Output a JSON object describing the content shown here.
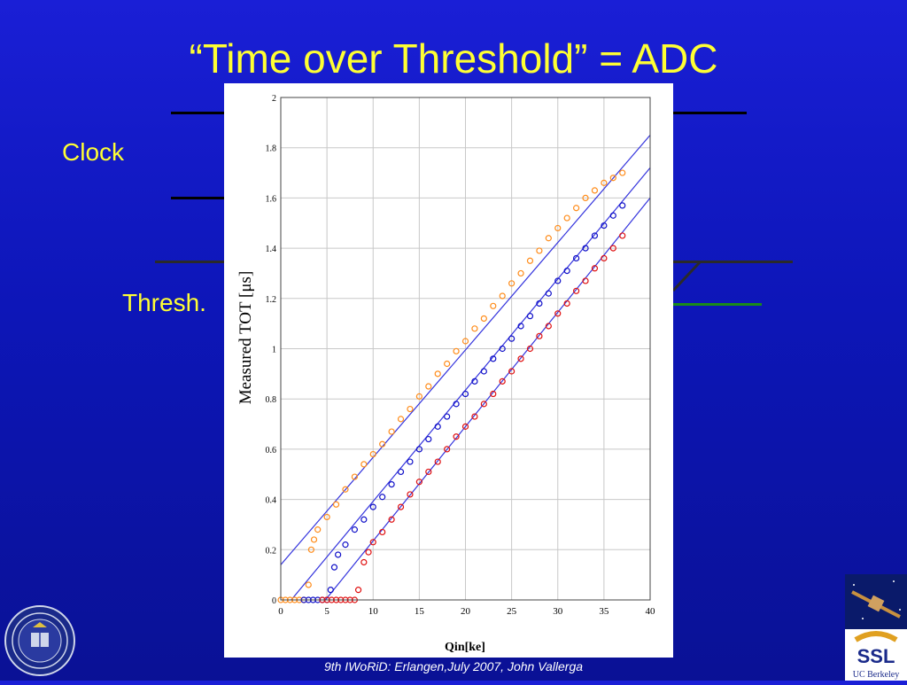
{
  "slide": {
    "title": "“Time over Threshold” = ADC",
    "clock_label": "Clock",
    "thresh_label": "Thresh.",
    "footer": "9th IWoRiD: Erlangen,July 2007, John Vallerga"
  },
  "logos": {
    "left": "uc-seal",
    "right": "ssl-logo",
    "right_text_1": "SSL",
    "right_text_2": "UC Berkeley"
  },
  "colors": {
    "title": "#ffff33",
    "background": "#1018c8",
    "orange_series": "#ff8c1a",
    "blue_series": "#1010c8",
    "red_series": "#e01010",
    "fit_line": "#3333dd",
    "green_line": "#1a8a1a"
  },
  "chart_data": {
    "type": "scatter",
    "xlabel": "Qin[ke]",
    "ylabel": "Measured TOT [μs]",
    "xlim": [
      0,
      40
    ],
    "ylim": [
      0,
      2
    ],
    "x_ticks": [
      "0",
      "5",
      "10",
      "15",
      "20",
      "25",
      "30",
      "35",
      "40"
    ],
    "y_ticks": [
      "0",
      "0.2",
      "0.4",
      "0.6",
      "0.8",
      "1",
      "1.2",
      "1.4",
      "1.6",
      "1.8",
      "2"
    ],
    "grid": true,
    "series": [
      {
        "color": "#ff8c1a",
        "points": [
          [
            0,
            0
          ],
          [
            0.5,
            0
          ],
          [
            1,
            0
          ],
          [
            1.5,
            0
          ],
          [
            2,
            0
          ],
          [
            2.5,
            0
          ],
          [
            3,
            0.06
          ],
          [
            3.3,
            0.2
          ],
          [
            3.6,
            0.24
          ],
          [
            4,
            0.28
          ],
          [
            5,
            0.33
          ],
          [
            6,
            0.38
          ],
          [
            7,
            0.44
          ],
          [
            8,
            0.49
          ],
          [
            9,
            0.54
          ],
          [
            10,
            0.58
          ],
          [
            11,
            0.62
          ],
          [
            12,
            0.67
          ],
          [
            13,
            0.72
          ],
          [
            14,
            0.76
          ],
          [
            15,
            0.81
          ],
          [
            16,
            0.85
          ],
          [
            17,
            0.9
          ],
          [
            18,
            0.94
          ],
          [
            19,
            0.99
          ],
          [
            20,
            1.03
          ],
          [
            21,
            1.08
          ],
          [
            22,
            1.12
          ],
          [
            23,
            1.17
          ],
          [
            24,
            1.21
          ],
          [
            25,
            1.26
          ],
          [
            26,
            1.3
          ],
          [
            27,
            1.35
          ],
          [
            28,
            1.39
          ],
          [
            29,
            1.44
          ],
          [
            30,
            1.48
          ],
          [
            31,
            1.52
          ],
          [
            32,
            1.56
          ],
          [
            33,
            1.6
          ],
          [
            34,
            1.63
          ],
          [
            35,
            1.66
          ],
          [
            36,
            1.68
          ],
          [
            37,
            1.7
          ]
        ]
      },
      {
        "color": "#1010c8",
        "points": [
          [
            2.5,
            0
          ],
          [
            3,
            0
          ],
          [
            3.5,
            0
          ],
          [
            4,
            0
          ],
          [
            4.5,
            0
          ],
          [
            5,
            0
          ],
          [
            5.4,
            0.04
          ],
          [
            5.8,
            0.13
          ],
          [
            6.2,
            0.18
          ],
          [
            7,
            0.22
          ],
          [
            8,
            0.28
          ],
          [
            9,
            0.32
          ],
          [
            10,
            0.37
          ],
          [
            11,
            0.41
          ],
          [
            12,
            0.46
          ],
          [
            13,
            0.51
          ],
          [
            14,
            0.55
          ],
          [
            15,
            0.6
          ],
          [
            16,
            0.64
          ],
          [
            17,
            0.69
          ],
          [
            18,
            0.73
          ],
          [
            19,
            0.78
          ],
          [
            20,
            0.82
          ],
          [
            21,
            0.87
          ],
          [
            22,
            0.91
          ],
          [
            23,
            0.96
          ],
          [
            24,
            1.0
          ],
          [
            25,
            1.04
          ],
          [
            26,
            1.09
          ],
          [
            27,
            1.13
          ],
          [
            28,
            1.18
          ],
          [
            29,
            1.22
          ],
          [
            30,
            1.27
          ],
          [
            31,
            1.31
          ],
          [
            32,
            1.36
          ],
          [
            33,
            1.4
          ],
          [
            34,
            1.45
          ],
          [
            35,
            1.49
          ],
          [
            36,
            1.53
          ],
          [
            37,
            1.57
          ]
        ]
      },
      {
        "color": "#e01010",
        "points": [
          [
            4.5,
            0
          ],
          [
            5,
            0
          ],
          [
            5.5,
            0
          ],
          [
            6,
            0
          ],
          [
            6.5,
            0
          ],
          [
            7,
            0
          ],
          [
            7.5,
            0
          ],
          [
            8,
            0
          ],
          [
            8.4,
            0.04
          ],
          [
            9,
            0.15
          ],
          [
            9.5,
            0.19
          ],
          [
            10,
            0.23
          ],
          [
            11,
            0.27
          ],
          [
            12,
            0.32
          ],
          [
            13,
            0.37
          ],
          [
            14,
            0.42
          ],
          [
            15,
            0.47
          ],
          [
            16,
            0.51
          ],
          [
            17,
            0.55
          ],
          [
            18,
            0.6
          ],
          [
            19,
            0.65
          ],
          [
            20,
            0.69
          ],
          [
            21,
            0.73
          ],
          [
            22,
            0.78
          ],
          [
            23,
            0.82
          ],
          [
            24,
            0.87
          ],
          [
            25,
            0.91
          ],
          [
            26,
            0.96
          ],
          [
            27,
            1.0
          ],
          [
            28,
            1.05
          ],
          [
            29,
            1.09
          ],
          [
            30,
            1.14
          ],
          [
            31,
            1.18
          ],
          [
            32,
            1.23
          ],
          [
            33,
            1.27
          ],
          [
            34,
            1.32
          ],
          [
            35,
            1.36
          ],
          [
            36,
            1.4
          ],
          [
            37,
            1.45
          ]
        ]
      }
    ],
    "fit_lines": [
      {
        "x": [
          0,
          40
        ],
        "y": [
          0.14,
          1.85
        ]
      },
      {
        "x": [
          0,
          40
        ],
        "y": [
          -0.05,
          1.72
        ]
      },
      {
        "x": [
          0,
          40
        ],
        "y": [
          -0.22,
          1.6
        ]
      }
    ]
  }
}
